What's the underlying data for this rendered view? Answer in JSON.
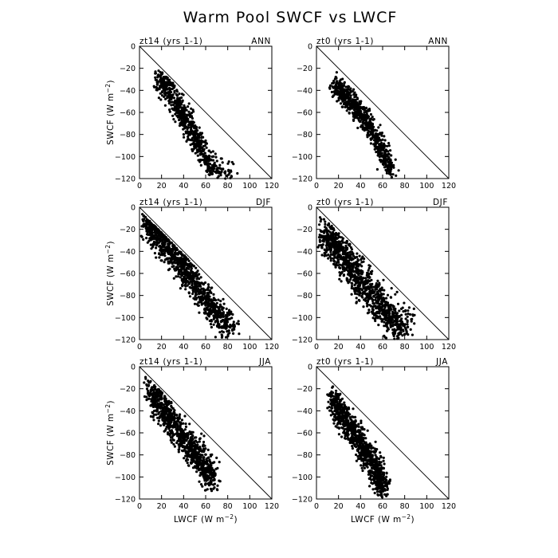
{
  "figure": {
    "title": "Warm Pool SWCF vs LWCF",
    "x_axis_label": "LWCF (W m",
    "y_axis_label": "SWCF (W m",
    "axis_unit_exponent": "−2"
  },
  "colors": {
    "points": "#000000",
    "frame": "#000000",
    "reference_line": "#000000"
  },
  "chart_data": [
    {
      "type": "scatter",
      "case": "zt14 (yrs 1-1)",
      "season": "ANN",
      "xlim": [
        0,
        120
      ],
      "ylim": [
        -120,
        0
      ],
      "x_ticks": [
        0,
        20,
        40,
        60,
        80,
        100,
        120
      ],
      "y_ticks": [
        0,
        -20,
        -40,
        -60,
        -80,
        -100,
        -120
      ],
      "reference_line": {
        "from": [
          0,
          0
        ],
        "to": [
          120,
          -120
        ]
      },
      "cluster": [
        {
          "x": 18,
          "y": -28
        },
        {
          "x": 22,
          "y": -36
        },
        {
          "x": 26,
          "y": -42
        },
        {
          "x": 30,
          "y": -48
        },
        {
          "x": 34,
          "y": -54
        },
        {
          "x": 38,
          "y": -60
        },
        {
          "x": 42,
          "y": -67
        },
        {
          "x": 46,
          "y": -74
        },
        {
          "x": 50,
          "y": -82
        },
        {
          "x": 54,
          "y": -90
        },
        {
          "x": 58,
          "y": -99
        },
        {
          "x": 64,
          "y": -108
        },
        {
          "x": 72,
          "y": -114
        },
        {
          "x": 82,
          "y": -117
        }
      ],
      "spread": [
        4,
        8
      ],
      "n_points": 700
    },
    {
      "type": "scatter",
      "case": "zt0 (yrs 1-1)",
      "season": "ANN",
      "xlim": [
        0,
        120
      ],
      "ylim": [
        -120,
        0
      ],
      "x_ticks": [
        0,
        20,
        40,
        60,
        80,
        100,
        120
      ],
      "y_ticks": [
        0,
        -20,
        -40,
        -60,
        -80,
        -100,
        -120
      ],
      "reference_line": {
        "from": [
          0,
          0
        ],
        "to": [
          120,
          -120
        ]
      },
      "cluster": [
        {
          "x": 18,
          "y": -35
        },
        {
          "x": 22,
          "y": -40
        },
        {
          "x": 26,
          "y": -45
        },
        {
          "x": 30,
          "y": -50
        },
        {
          "x": 35,
          "y": -55
        },
        {
          "x": 40,
          "y": -61
        },
        {
          "x": 45,
          "y": -68
        },
        {
          "x": 50,
          "y": -76
        },
        {
          "x": 55,
          "y": -85
        },
        {
          "x": 60,
          "y": -95
        },
        {
          "x": 64,
          "y": -104
        },
        {
          "x": 68,
          "y": -112
        }
      ],
      "spread": [
        4,
        6
      ],
      "n_points": 700
    },
    {
      "type": "scatter",
      "case": "zt14 (yrs 1-1)",
      "season": "DJF",
      "xlim": [
        0,
        120
      ],
      "ylim": [
        -120,
        0
      ],
      "x_ticks": [
        0,
        20,
        40,
        60,
        80,
        100,
        120
      ],
      "y_ticks": [
        0,
        -20,
        -40,
        -60,
        -80,
        -100,
        -120
      ],
      "reference_line": {
        "from": [
          0,
          0
        ],
        "to": [
          120,
          -120
        ]
      },
      "cluster": [
        {
          "x": 7,
          "y": -15
        },
        {
          "x": 12,
          "y": -20
        },
        {
          "x": 17,
          "y": -26
        },
        {
          "x": 22,
          "y": -33
        },
        {
          "x": 28,
          "y": -40
        },
        {
          "x": 34,
          "y": -48
        },
        {
          "x": 40,
          "y": -56
        },
        {
          "x": 46,
          "y": -64
        },
        {
          "x": 52,
          "y": -72
        },
        {
          "x": 58,
          "y": -80
        },
        {
          "x": 64,
          "y": -88
        },
        {
          "x": 70,
          "y": -96
        },
        {
          "x": 76,
          "y": -104
        },
        {
          "x": 84,
          "y": -110
        }
      ],
      "spread": [
        5,
        9
      ],
      "n_points": 1100
    },
    {
      "type": "scatter",
      "case": "zt0 (yrs 1-1)",
      "season": "DJF",
      "xlim": [
        0,
        120
      ],
      "ylim": [
        -120,
        0
      ],
      "x_ticks": [
        0,
        20,
        40,
        60,
        80,
        100,
        120
      ],
      "y_ticks": [
        0,
        -20,
        -40,
        -60,
        -80,
        -100,
        -120
      ],
      "reference_line": {
        "from": [
          0,
          0
        ],
        "to": [
          120,
          -120
        ]
      },
      "cluster": [
        {
          "x": 8,
          "y": -22
        },
        {
          "x": 12,
          "y": -28
        },
        {
          "x": 18,
          "y": -36
        },
        {
          "x": 24,
          "y": -44
        },
        {
          "x": 30,
          "y": -52
        },
        {
          "x": 36,
          "y": -60
        },
        {
          "x": 42,
          "y": -68
        },
        {
          "x": 48,
          "y": -76
        },
        {
          "x": 54,
          "y": -84
        },
        {
          "x": 60,
          "y": -92
        },
        {
          "x": 66,
          "y": -100
        },
        {
          "x": 74,
          "y": -106
        },
        {
          "x": 82,
          "y": -102
        }
      ],
      "spread": [
        7,
        10
      ],
      "n_points": 1100
    },
    {
      "type": "scatter",
      "case": "zt14 (yrs 1-1)",
      "season": "JJA",
      "xlim": [
        0,
        120
      ],
      "ylim": [
        -120,
        0
      ],
      "x_ticks": [
        0,
        20,
        40,
        60,
        80,
        100,
        120
      ],
      "y_ticks": [
        0,
        -20,
        -40,
        -60,
        -80,
        -100,
        -120
      ],
      "reference_line": {
        "from": [
          0,
          0
        ],
        "to": [
          120,
          -120
        ]
      },
      "cluster": [
        {
          "x": 10,
          "y": -18
        },
        {
          "x": 14,
          "y": -28
        },
        {
          "x": 20,
          "y": -38
        },
        {
          "x": 26,
          "y": -46
        },
        {
          "x": 32,
          "y": -54
        },
        {
          "x": 38,
          "y": -62
        },
        {
          "x": 44,
          "y": -70
        },
        {
          "x": 50,
          "y": -78
        },
        {
          "x": 56,
          "y": -86
        },
        {
          "x": 62,
          "y": -94
        },
        {
          "x": 66,
          "y": -102
        }
      ],
      "spread": [
        5,
        9
      ],
      "n_points": 950
    },
    {
      "type": "scatter",
      "case": "zt0 (yrs 1-1)",
      "season": "JJA",
      "xlim": [
        0,
        120
      ],
      "ylim": [
        -120,
        0
      ],
      "x_ticks": [
        0,
        20,
        40,
        60,
        80,
        100,
        120
      ],
      "y_ticks": [
        0,
        -20,
        -40,
        -60,
        -80,
        -100,
        -120
      ],
      "reference_line": {
        "from": [
          0,
          0
        ],
        "to": [
          120,
          -120
        ]
      },
      "cluster": [
        {
          "x": 16,
          "y": -30
        },
        {
          "x": 20,
          "y": -38
        },
        {
          "x": 25,
          "y": -46
        },
        {
          "x": 30,
          "y": -54
        },
        {
          "x": 35,
          "y": -62
        },
        {
          "x": 40,
          "y": -70
        },
        {
          "x": 45,
          "y": -78
        },
        {
          "x": 50,
          "y": -86
        },
        {
          "x": 55,
          "y": -94
        },
        {
          "x": 58,
          "y": -102
        },
        {
          "x": 60,
          "y": -110
        }
      ],
      "spread": [
        5,
        8
      ],
      "n_points": 950
    }
  ]
}
